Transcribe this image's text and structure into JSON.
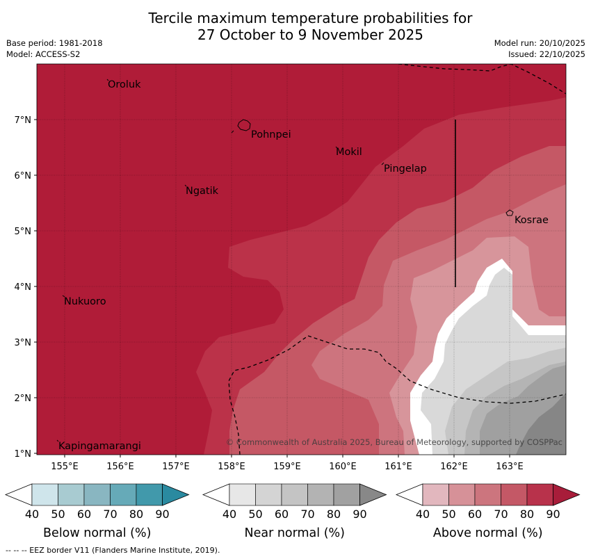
{
  "title": {
    "line1": "Tercile maximum temperature probabilities for",
    "line2": "27 October to 9 November 2025"
  },
  "meta": {
    "base_period": "Base period: 1981-2018",
    "model": "Model: ACCESS-S2",
    "model_run": "Model run: 20/10/2025",
    "issued": "Issued: 22/10/2025"
  },
  "map": {
    "lon_labels": [
      "155°E",
      "156°E",
      "157°E",
      "158°E",
      "159°E",
      "160°E",
      "161°E",
      "162°E",
      "163°E"
    ],
    "lat_labels": [
      "7°N",
      "6°N",
      "5°N",
      "4°N",
      "3°N",
      "2°N",
      "1°N"
    ],
    "places": [
      {
        "name": "Oroluk"
      },
      {
        "name": "Pohnpei"
      },
      {
        "name": "Mokil"
      },
      {
        "name": "Pingelap"
      },
      {
        "name": "Ngatik"
      },
      {
        "name": "Kosrae"
      },
      {
        "name": "Nukuoro"
      },
      {
        "name": "Kapingamarangi"
      }
    ],
    "copyright": "© Commonwealth of Australia 2025, Bureau of Meteorology, supported by COSPPac",
    "colors": {
      "above_90": "#b01c38",
      "above_80": "#bb3249",
      "above_70": "#c55865",
      "above_60": "#cd747e",
      "above_50": "#d7959b",
      "near_40": "#d9d9d9",
      "near_50": "#c6c6c6",
      "near_60": "#b4b4b4",
      "near_70": "#a0a0a0",
      "near_80": "#868686"
    }
  },
  "colorbars": [
    {
      "name": "below",
      "title": "Below normal (%)",
      "ticks": [
        "40",
        "50",
        "60",
        "70",
        "80",
        "90"
      ],
      "colors": [
        "#cfe5eb",
        "#a8cbd1",
        "#89b6c1",
        "#66aab8",
        "#4199ab",
        "#2a8aa0"
      ]
    },
    {
      "name": "near",
      "title": "Near normal (%)",
      "ticks": [
        "40",
        "50",
        "60",
        "70",
        "80",
        "90"
      ],
      "colors": [
        "#e7e7e7",
        "#d4d4d4",
        "#c4c4c4",
        "#b3b3b3",
        "#a1a1a1",
        "#888888"
      ]
    },
    {
      "name": "above",
      "title": "Above normal (%)",
      "ticks": [
        "40",
        "50",
        "60",
        "70",
        "80",
        "90"
      ],
      "colors": [
        "#e2b7be",
        "#d69198",
        "#cc757e",
        "#c45866",
        "#b8324b",
        "#a81d3a"
      ]
    }
  ],
  "footnote": "--  --  -- EEZ border V11 (Flanders Marine Institute, 2019)."
}
